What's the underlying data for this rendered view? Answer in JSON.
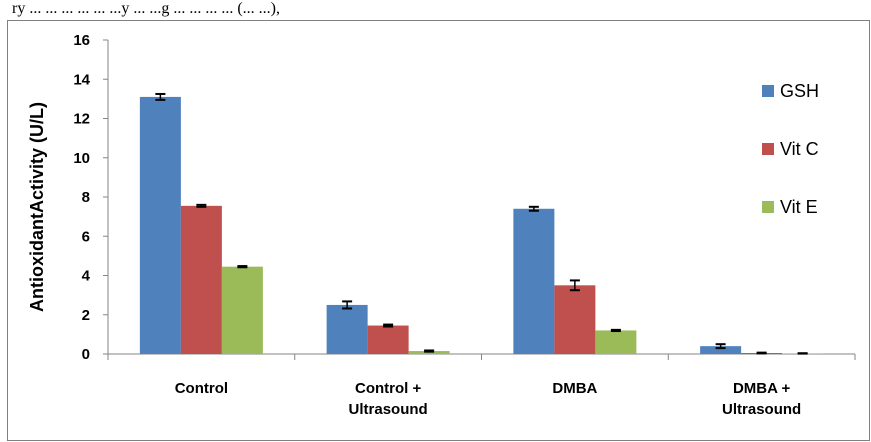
{
  "caption": "ry ... ... ... ... ... ...y ... ...g ... ... ... ... (... ...),",
  "chart_data": {
    "type": "bar",
    "categories": [
      [
        "Control"
      ],
      [
        "Control +",
        "Ultrasound"
      ],
      [
        "DMBA"
      ],
      [
        "DMBA +",
        "Ultrasound"
      ]
    ],
    "series": [
      {
        "name": "GSH",
        "color": "#4F81BD",
        "values": [
          13.1,
          2.5,
          7.4,
          0.4
        ],
        "errors": [
          0.15,
          0.18,
          0.1,
          0.1
        ]
      },
      {
        "name": "Vit C",
        "color": "#C0504D",
        "values": [
          7.55,
          1.45,
          3.5,
          0.05
        ],
        "errors": [
          0.05,
          0.05,
          0.25,
          0.02
        ]
      },
      {
        "name": "Vit E",
        "color": "#9BBB59",
        "values": [
          4.45,
          0.15,
          1.2,
          0.03
        ],
        "errors": [
          0.03,
          0.03,
          0.03,
          0.01
        ]
      }
    ],
    "ylabel": "AntioxidantActivity (U/L)",
    "xlabel": "",
    "ylim": [
      0,
      16
    ],
    "yticks": [
      0,
      2,
      4,
      6,
      8,
      10,
      12,
      14,
      16
    ],
    "grid": false,
    "legend": "right"
  }
}
